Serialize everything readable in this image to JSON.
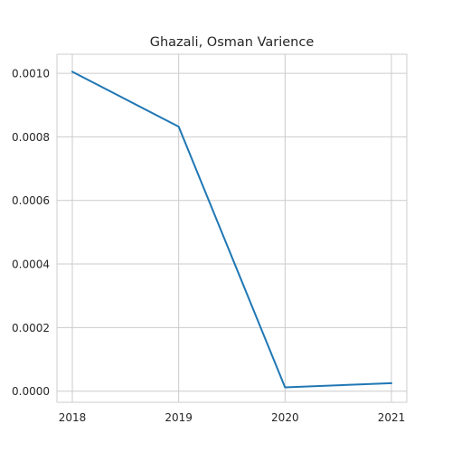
{
  "chart_data": {
    "type": "line",
    "title": "Ghazali, Osman Varience",
    "xlabel": "",
    "ylabel": "",
    "x": [
      "2018",
      "2019",
      "2020",
      "2021"
    ],
    "series": [
      {
        "values": [
          0.001005,
          0.000832,
          1.2e-05,
          2.5e-05
        ]
      }
    ],
    "ylim": [
      -3.5e-05,
      0.00106
    ],
    "yticks": [
      "0.0000",
      "0.0002",
      "0.0004",
      "0.0006",
      "0.0008",
      "0.0010"
    ],
    "ytick_values": [
      0,
      0.0002,
      0.0004,
      0.0006,
      0.0008,
      0.001
    ],
    "grid": true,
    "colors": {
      "line": "#1f77b4",
      "grid": "#cccccc",
      "text": "#262626"
    }
  }
}
